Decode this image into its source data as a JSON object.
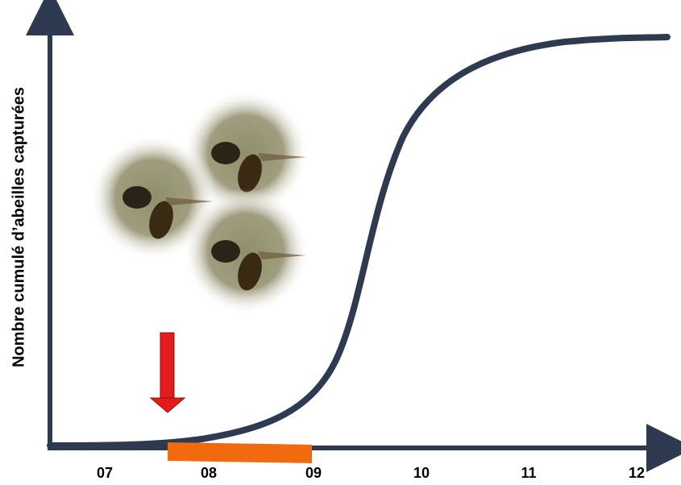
{
  "axis": {
    "y_label": "Nombre cumulé d’abeilles capturées"
  },
  "x_labels": [
    "07",
    "08",
    "09",
    "10",
    "11",
    "12"
  ]
}
